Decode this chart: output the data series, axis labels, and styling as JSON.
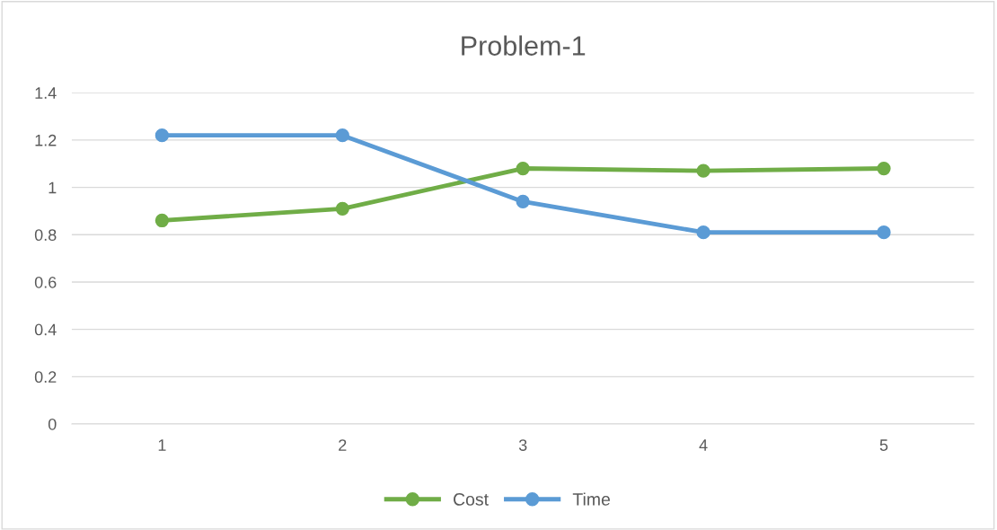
{
  "chart_data": {
    "type": "line",
    "title": "Problem-1",
    "categories": [
      "1",
      "2",
      "3",
      "4",
      "5"
    ],
    "series": [
      {
        "name": "Cost",
        "color": "#70ad47",
        "values": [
          0.86,
          0.91,
          1.08,
          1.07,
          1.08
        ]
      },
      {
        "name": "Time",
        "color": "#5b9bd5",
        "values": [
          1.22,
          1.22,
          0.94,
          0.81,
          0.81
        ]
      }
    ],
    "ylim": [
      0,
      1.4
    ],
    "yticks": [
      0,
      0.2,
      0.4,
      0.6,
      0.8,
      1,
      1.2,
      1.4
    ],
    "grid": "y",
    "legend": "bottom",
    "marker": "circle",
    "line_style": "solid"
  }
}
